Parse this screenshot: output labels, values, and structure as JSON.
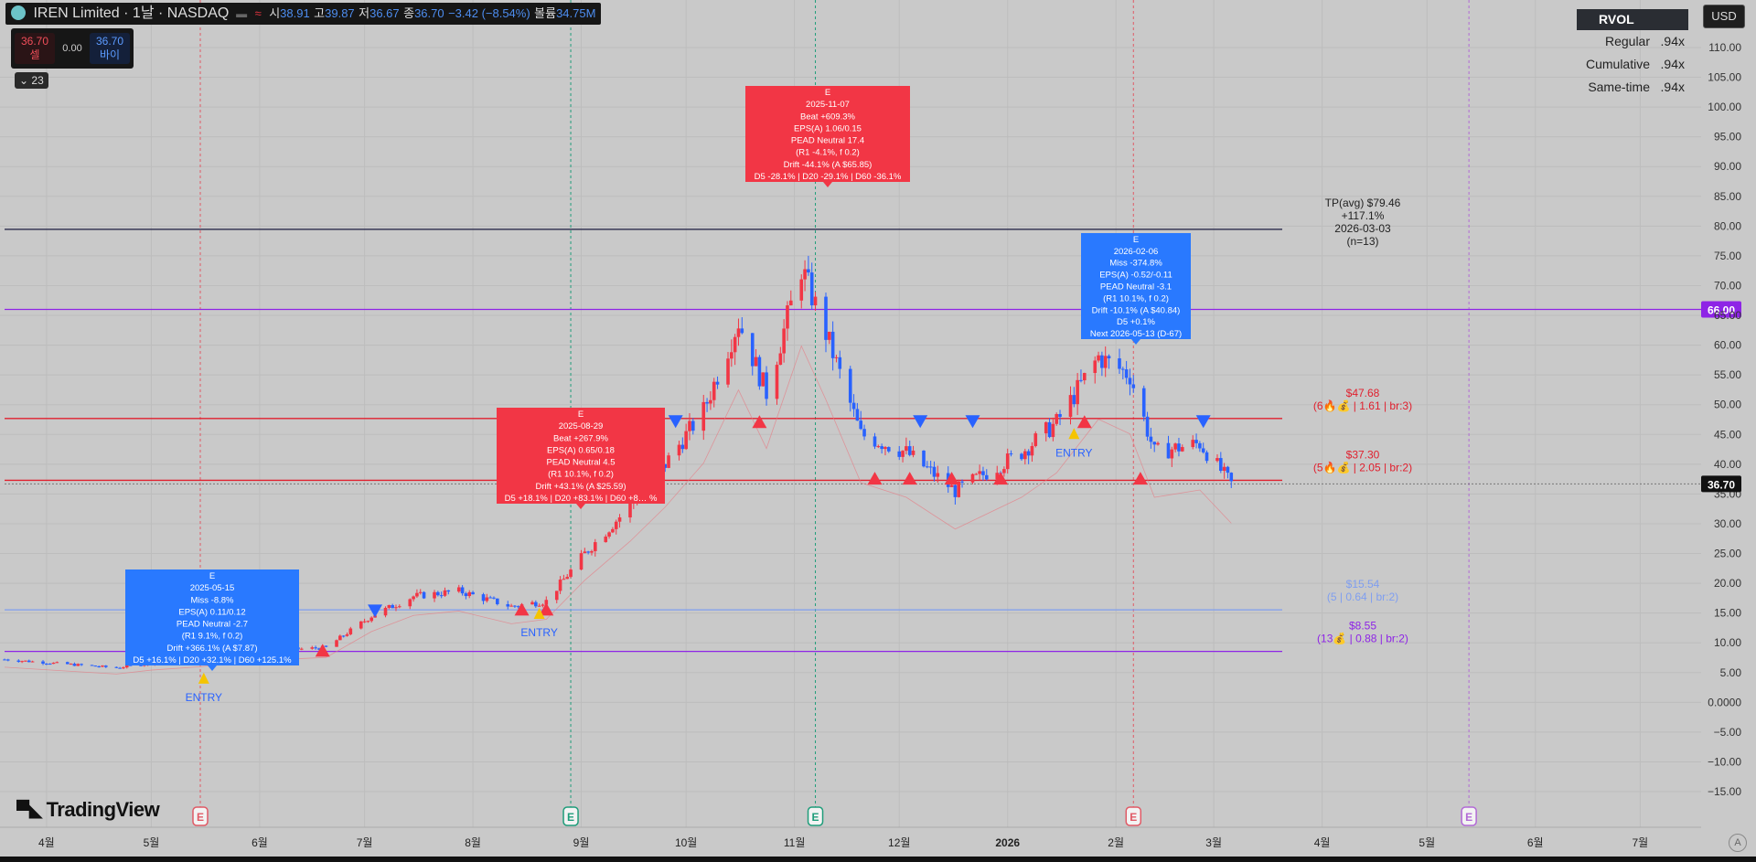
{
  "header": {
    "title": "IREN Limited · 1날 · NASDAQ",
    "open_label": "시",
    "open": "38.91",
    "high_label": "고",
    "high": "39.87",
    "low_label": "저",
    "low": "36.67",
    "close_label": "종",
    "close": "36.70",
    "change": "−3.42 (−8.54%)",
    "volume_label": "볼륨",
    "volume": "34.75M"
  },
  "trade": {
    "sell_price": "36.70",
    "sell_label": "셀",
    "spread": "0.00",
    "buy_price": "36.70",
    "buy_label": "바이"
  },
  "indicators_count": "23",
  "currency": "USD",
  "rvol": {
    "title": "RVOL",
    "rows": [
      {
        "label": "Regular",
        "value": ".94x"
      },
      {
        "label": "Cumulative",
        "value": ".94x"
      },
      {
        "label": "Same-time",
        "value": ".94x"
      }
    ]
  },
  "brand": "TradingView",
  "colors": {
    "up": "#f23645",
    "down": "#2962ff",
    "level_red": "#f23645",
    "level_purple": "#9c27b0",
    "level_blue": "#7f9ef0",
    "bg": "#c9c9c9"
  },
  "chart_data": {
    "type": "candlestick",
    "symbol": "IREN",
    "y_axis": {
      "min": -15,
      "max": 110,
      "step": 5,
      "side": "right"
    },
    "y_ticks": [
      "110.00",
      "105.00",
      "100.00",
      "95.00",
      "90.00",
      "85.00",
      "80.00",
      "75.00",
      "70.00",
      "65.00",
      "60.00",
      "55.00",
      "50.00",
      "45.00",
      "40.00",
      "35.00",
      "30.00",
      "25.00",
      "20.00",
      "15.00",
      "10.00",
      "5.00",
      "0.0000",
      "−5.00",
      "−10.00",
      "−15.00"
    ],
    "x_axis": {
      "start": "2025-03-20",
      "end": "2026-07-31",
      "ticks": [
        {
          "date": "2025-04-01",
          "label": "4월"
        },
        {
          "date": "2025-05-01",
          "label": "5월"
        },
        {
          "date": "2025-06-01",
          "label": "6월"
        },
        {
          "date": "2025-07-01",
          "label": "7월"
        },
        {
          "date": "2025-08-01",
          "label": "8월"
        },
        {
          "date": "2025-09-01",
          "label": "9월"
        },
        {
          "date": "2025-10-01",
          "label": "10월"
        },
        {
          "date": "2025-11-01",
          "label": "11월"
        },
        {
          "date": "2025-12-01",
          "label": "12월"
        },
        {
          "date": "2026-01-01",
          "label": "2026"
        },
        {
          "date": "2026-02-01",
          "label": "2월"
        },
        {
          "date": "2026-03-01",
          "label": "3월"
        },
        {
          "date": "2026-04-01",
          "label": "4월"
        },
        {
          "date": "2026-05-01",
          "label": "5월"
        },
        {
          "date": "2026-06-01",
          "label": "6월"
        },
        {
          "date": "2026-07-01",
          "label": "7월"
        }
      ]
    },
    "price_path": [
      [
        "2025-03-20",
        7.2
      ],
      [
        "2025-04-07",
        6.4
      ],
      [
        "2025-04-21",
        5.8
      ],
      [
        "2025-05-01",
        6.6
      ],
      [
        "2025-05-15",
        7.3
      ],
      [
        "2025-06-02",
        8.6
      ],
      [
        "2025-06-20",
        9.2
      ],
      [
        "2025-07-03",
        14.5
      ],
      [
        "2025-07-15",
        17.8
      ],
      [
        "2025-07-28",
        18.7
      ],
      [
        "2025-08-12",
        16.1
      ],
      [
        "2025-08-22",
        17.0
      ],
      [
        "2025-09-02",
        25.0
      ],
      [
        "2025-09-15",
        33.0
      ],
      [
        "2025-09-25",
        40.0
      ],
      [
        "2025-10-06",
        49.0
      ],
      [
        "2025-10-16",
        64.0
      ],
      [
        "2025-10-24",
        52.0
      ],
      [
        "2025-11-03",
        73.0
      ],
      [
        "2025-11-10",
        62.0
      ],
      [
        "2025-11-20",
        45.0
      ],
      [
        "2025-12-03",
        42.0
      ],
      [
        "2025-12-17",
        35.5
      ],
      [
        "2026-01-05",
        42.0
      ],
      [
        "2026-01-15",
        47.0
      ],
      [
        "2026-01-27",
        58.0
      ],
      [
        "2026-02-05",
        55.0
      ],
      [
        "2026-02-12",
        42.0
      ],
      [
        "2026-02-25",
        43.5
      ],
      [
        "2026-03-06",
        36.7
      ]
    ],
    "last_price": "36.70",
    "levels": [
      {
        "price": 79.46,
        "color": "#1a1a40",
        "label": "TP(avg) $79.46",
        "lines": [
          "+117.1%",
          "2026-03-03",
          "(n=13)"
        ]
      },
      {
        "price": 66.0,
        "color": "#8e24e6",
        "tag": "66.00"
      },
      {
        "price": 47.68,
        "color": "#e0202e",
        "label": "$47.68",
        "lines": [
          "(6🔥💰 | 1.61 | br:3)"
        ]
      },
      {
        "price": 37.3,
        "color": "#e0202e",
        "label": "$37.30",
        "lines": [
          "(5🔥💰 | 2.05 | br:2)"
        ]
      },
      {
        "price": 15.54,
        "color": "#7f9ef0",
        "label": "$15.54",
        "lines": [
          "(5 | 0.64 | br:2)"
        ]
      },
      {
        "price": 8.55,
        "color": "#8e24e6",
        "label": "$8.55",
        "lines": [
          "(13💰 | 0.88 | br:2)"
        ]
      }
    ],
    "earnings_boxes": [
      {
        "date": "2025-05-15",
        "kind": "miss",
        "lines": [
          "E",
          "2025-05-15",
          "Miss -8.8%",
          "EPS(A) 0.11/0.12",
          "PEAD Neutral -2.7",
          "(R1 9.1%, f 0.2)",
          "Drift +366.1% (A $7.87)",
          "D5 +16.1% | D20 +32.1% | D60 +125.1%"
        ]
      },
      {
        "date": "2025-08-29",
        "kind": "beat",
        "lines": [
          "E",
          "2025-08-29",
          "Beat +267.9%",
          "EPS(A) 0.65/0.18",
          "PEAD Neutral 4.5",
          "(R1 10.1%, f 0.2)",
          "Drift +43.1% (A $25.59)",
          "D5 +18.1% | D20 +83.1% | D60 +8… %"
        ]
      },
      {
        "date": "2025-11-07",
        "kind": "beat",
        "lines": [
          "E",
          "2025-11-07",
          "Beat +609.3%",
          "EPS(A) 1.06/0.15",
          "PEAD Neutral 17.4",
          "(R1 -4.1%, f 0.2)",
          "Drift -44.1% (A $65.85)",
          "D5 -28.1% | D20 -29.1% | D60 -36.1%"
        ]
      },
      {
        "date": "2026-02-06",
        "kind": "miss",
        "lines": [
          "E",
          "2026-02-06",
          "Miss -374.8%",
          "EPS(A) -0.52/-0.11",
          "PEAD Neutral -3.1",
          "(R1 10.1%, f 0.2)",
          "Drift -10.1% (A $40.84)",
          "D5 +0.1%",
          "Next 2026-05-13 (D-67)"
        ]
      }
    ],
    "earnings_markers": [
      {
        "date": "2025-05-15",
        "style": "red"
      },
      {
        "date": "2025-08-29",
        "style": "green"
      },
      {
        "date": "2025-11-07",
        "style": "green"
      },
      {
        "date": "2026-02-06",
        "style": "red"
      },
      {
        "date": "2026-05-13",
        "style": "purple"
      }
    ],
    "entry_label": "ENTRY",
    "entries": [
      [
        "2025-05-16",
        3.9
      ],
      [
        "2025-08-20",
        14.8
      ],
      [
        "2026-01-20",
        45.0
      ]
    ],
    "up_triangles": [
      [
        "2025-05-06",
        8.6
      ],
      [
        "2025-06-01",
        8.6
      ],
      [
        "2025-06-19",
        8.6
      ],
      [
        "2025-08-15",
        15.5
      ],
      [
        "2025-08-22",
        15.5
      ],
      [
        "2025-10-22",
        47.0
      ],
      [
        "2025-11-24",
        37.5
      ],
      [
        "2025-12-04",
        37.5
      ],
      [
        "2025-12-16",
        37.5
      ],
      [
        "2025-12-30",
        37.5
      ],
      [
        "2026-01-23",
        47.0
      ],
      [
        "2026-02-08",
        37.5
      ]
    ],
    "down_triangles": [
      [
        "2025-05-01",
        8.6
      ],
      [
        "2025-05-20",
        8.6
      ],
      [
        "2025-06-10",
        8.6
      ],
      [
        "2025-07-04",
        15.5
      ],
      [
        "2025-09-28",
        47.3
      ],
      [
        "2025-12-07",
        47.3
      ],
      [
        "2025-12-22",
        47.3
      ],
      [
        "2026-02-26",
        47.3
      ]
    ]
  }
}
